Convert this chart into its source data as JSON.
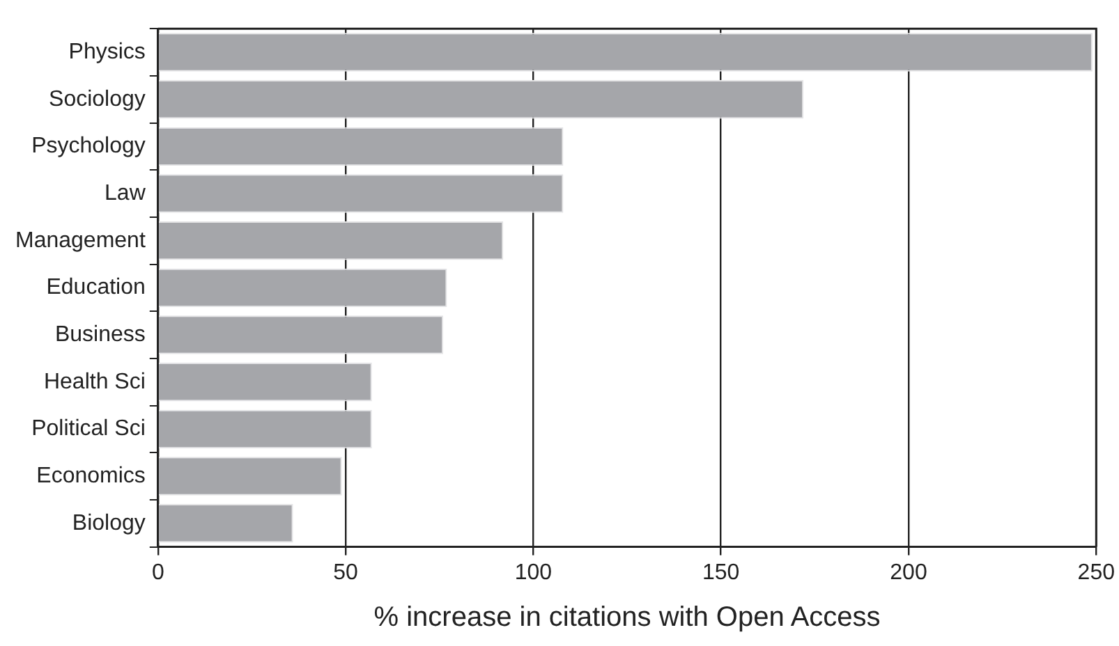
{
  "chart_data": {
    "type": "bar",
    "orientation": "horizontal",
    "xlabel": "% increase in citations with Open Access",
    "categories": [
      "Physics",
      "Sociology",
      "Psychology",
      "Law",
      "Management",
      "Education",
      "Business",
      "Health Sci",
      "Political Sci",
      "Economics",
      "Biology"
    ],
    "values": [
      249,
      172,
      108,
      108,
      92,
      77,
      76,
      57,
      57,
      49,
      36
    ],
    "color": "#a5a6aa",
    "xlim": [
      0,
      250
    ],
    "xticks": [
      0,
      50,
      100,
      150,
      200,
      250
    ],
    "grid": "x",
    "legend": false
  }
}
